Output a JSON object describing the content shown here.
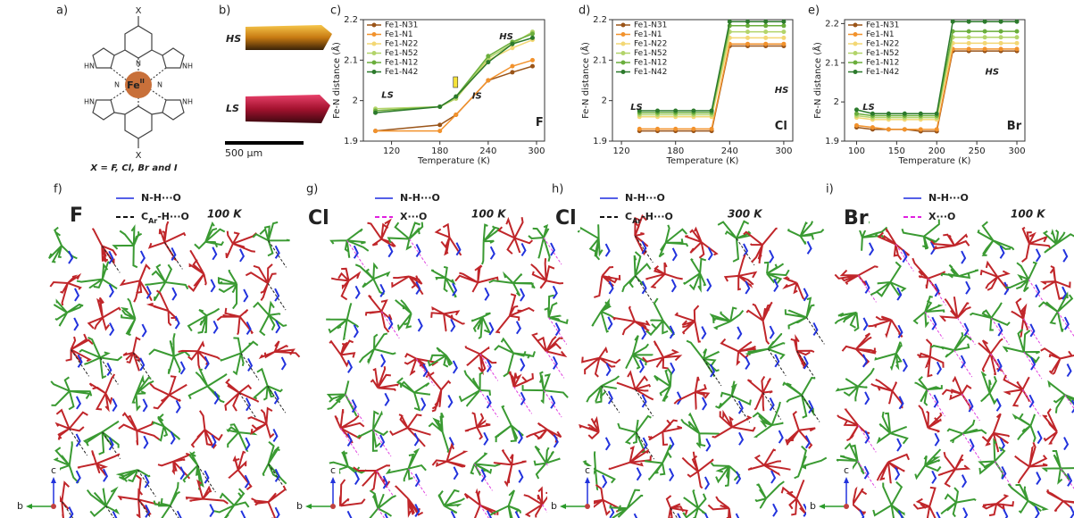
{
  "molecule": {
    "label": "a)",
    "x_top": "X",
    "x_bottom": "X",
    "metal": "Fe",
    "metal_sup": "II",
    "atoms": [
      "N",
      "N",
      "N",
      "HN",
      "NH",
      "HN",
      "NH",
      "N",
      "N"
    ],
    "caption": "X = F, Cl, Br and I"
  },
  "crystal": {
    "label": "b)",
    "top": "HS",
    "bottom": "LS",
    "scale": "500 µm"
  },
  "chart_data": [
    {
      "type": "line",
      "panel_label": "c)",
      "xlabel": "Temperature (K)",
      "ylabel": "Fe-N distance (Å)",
      "annotations": [
        "LS",
        "IS",
        "HS",
        "F"
      ],
      "legend": "upper left",
      "x": [
        100,
        180,
        200,
        240,
        270,
        295
      ],
      "xlim": [
        85,
        310
      ],
      "xticks": [
        120,
        180,
        240,
        300
      ],
      "ylim": [
        1.9,
        2.2
      ],
      "yticks": [
        1.9,
        2.0,
        2.1,
        2.2
      ],
      "series": [
        {
          "name": "Fe1-N31",
          "color": "#9a5418",
          "values": [
            1.925,
            1.94,
            1.965,
            2.05,
            2.07,
            2.085
          ]
        },
        {
          "name": "Fe1-N1",
          "color": "#f2922c",
          "values": [
            1.925,
            1.925,
            1.965,
            2.05,
            2.085,
            2.1
          ]
        },
        {
          "name": "Fe1-N22",
          "color": "#f3d774",
          "values": [
            1.975,
            1.985,
            2.005,
            2.1,
            2.13,
            2.15
          ]
        },
        {
          "name": "Fe1-N52",
          "color": "#b3d46a",
          "values": [
            1.98,
            1.985,
            2.005,
            2.105,
            2.14,
            2.17
          ]
        },
        {
          "name": "Fe1-N12",
          "color": "#6aae3c",
          "values": [
            1.975,
            1.985,
            2.01,
            2.11,
            2.145,
            2.165
          ]
        },
        {
          "name": "Fe1-N42",
          "color": "#2c7a2c",
          "values": [
            1.97,
            1.985,
            2.01,
            2.095,
            2.14,
            2.155
          ]
        }
      ]
    },
    {
      "type": "line",
      "panel_label": "d)",
      "xlabel": "Temperature (K)",
      "ylabel": "Fe-N distance (Å)",
      "annotations": [
        "LS",
        "HS",
        "Cl"
      ],
      "legend": "upper left",
      "x": [
        140,
        160,
        180,
        200,
        220,
        240,
        260,
        280,
        300
      ],
      "xlim": [
        110,
        310
      ],
      "xticks": [
        120,
        180,
        240,
        300
      ],
      "ylim": [
        1.9,
        2.2
      ],
      "yticks": [
        1.9,
        2.0,
        2.1,
        2.2
      ],
      "series": [
        {
          "name": "Fe1-N31",
          "color": "#9a5418",
          "values": [
            1.925,
            1.925,
            1.925,
            1.925,
            1.925,
            2.135,
            2.135,
            2.135,
            2.135
          ]
        },
        {
          "name": "Fe1-N1",
          "color": "#f2922c",
          "values": [
            1.93,
            1.93,
            1.93,
            1.93,
            1.93,
            2.14,
            2.14,
            2.14,
            2.14
          ]
        },
        {
          "name": "Fe1-N22",
          "color": "#f3d774",
          "values": [
            1.96,
            1.96,
            1.96,
            1.96,
            1.96,
            2.155,
            2.155,
            2.155,
            2.155
          ]
        },
        {
          "name": "Fe1-N52",
          "color": "#b3d46a",
          "values": [
            1.965,
            1.965,
            1.965,
            1.965,
            1.965,
            2.17,
            2.17,
            2.17,
            2.17
          ]
        },
        {
          "name": "Fe1-N12",
          "color": "#6aae3c",
          "values": [
            1.97,
            1.97,
            1.97,
            1.97,
            1.97,
            2.185,
            2.185,
            2.185,
            2.185
          ]
        },
        {
          "name": "Fe1-N42",
          "color": "#2c7a2c",
          "values": [
            1.975,
            1.975,
            1.975,
            1.975,
            1.975,
            2.195,
            2.195,
            2.195,
            2.195
          ]
        }
      ]
    },
    {
      "type": "line",
      "panel_label": "e)",
      "xlabel": "Temperature (K)",
      "ylabel": "Fe-N distance (Å)",
      "annotations": [
        "LS",
        "HS",
        "Br"
      ],
      "legend": "upper left",
      "x": [
        100,
        120,
        140,
        160,
        180,
        200,
        220,
        240,
        260,
        280,
        300
      ],
      "xlim": [
        85,
        310
      ],
      "xticks": [
        100,
        150,
        200,
        250,
        300
      ],
      "ylim": [
        1.9,
        2.21
      ],
      "yticks": [
        1.9,
        2.0,
        2.1,
        2.2
      ],
      "series": [
        {
          "name": "Fe1-N31",
          "color": "#9a5418",
          "values": [
            1.935,
            1.93,
            1.93,
            1.93,
            1.925,
            1.925,
            2.13,
            2.13,
            2.13,
            2.13,
            2.13
          ]
        },
        {
          "name": "Fe1-N1",
          "color": "#f2922c",
          "values": [
            1.94,
            1.935,
            1.93,
            1.93,
            1.93,
            1.93,
            2.135,
            2.135,
            2.135,
            2.135,
            2.135
          ]
        },
        {
          "name": "Fe1-N22",
          "color": "#f3d774",
          "values": [
            1.96,
            1.955,
            1.955,
            1.955,
            1.955,
            1.955,
            2.15,
            2.15,
            2.15,
            2.15,
            2.15
          ]
        },
        {
          "name": "Fe1-N52",
          "color": "#b3d46a",
          "values": [
            1.965,
            1.96,
            1.96,
            1.96,
            1.96,
            1.96,
            2.165,
            2.165,
            2.165,
            2.165,
            2.165
          ]
        },
        {
          "name": "Fe1-N12",
          "color": "#6aae3c",
          "values": [
            1.97,
            1.965,
            1.965,
            1.965,
            1.965,
            1.965,
            2.18,
            2.18,
            2.18,
            2.18,
            2.18
          ]
        },
        {
          "name": "Fe1-N42",
          "color": "#2c7a2c",
          "values": [
            1.98,
            1.97,
            1.97,
            1.97,
            1.97,
            1.97,
            2.205,
            2.205,
            2.205,
            2.205,
            2.205
          ]
        }
      ]
    }
  ],
  "structures": [
    {
      "label": "f)",
      "compound": "F",
      "legend": [
        {
          "text": "N-H···O"
        },
        {
          "base": "C",
          "sub": "Ar",
          "rest": "-H···O"
        }
      ],
      "temperature": "100 K",
      "axes": [
        "c",
        "b"
      ]
    },
    {
      "label": "g)",
      "compound": "Cl",
      "legend": [
        {
          "text": "N-H···O"
        },
        {
          "text": "X···O"
        }
      ],
      "temperature": "100 K",
      "axes": [
        "c",
        "b"
      ]
    },
    {
      "label": "h)",
      "compound": "Cl",
      "legend": [
        {
          "text": "N-H···O"
        },
        {
          "base": "C",
          "sub": "Ar",
          "rest": "-H···O"
        }
      ],
      "temperature": "300 K",
      "axes": [
        "c",
        "b"
      ]
    },
    {
      "label": "i)",
      "compound": "Br",
      "legend": [
        {
          "text": "N-H···O"
        },
        {
          "text": "X···O"
        }
      ],
      "temperature": "100 K",
      "axes": [
        "c",
        "b"
      ]
    }
  ]
}
